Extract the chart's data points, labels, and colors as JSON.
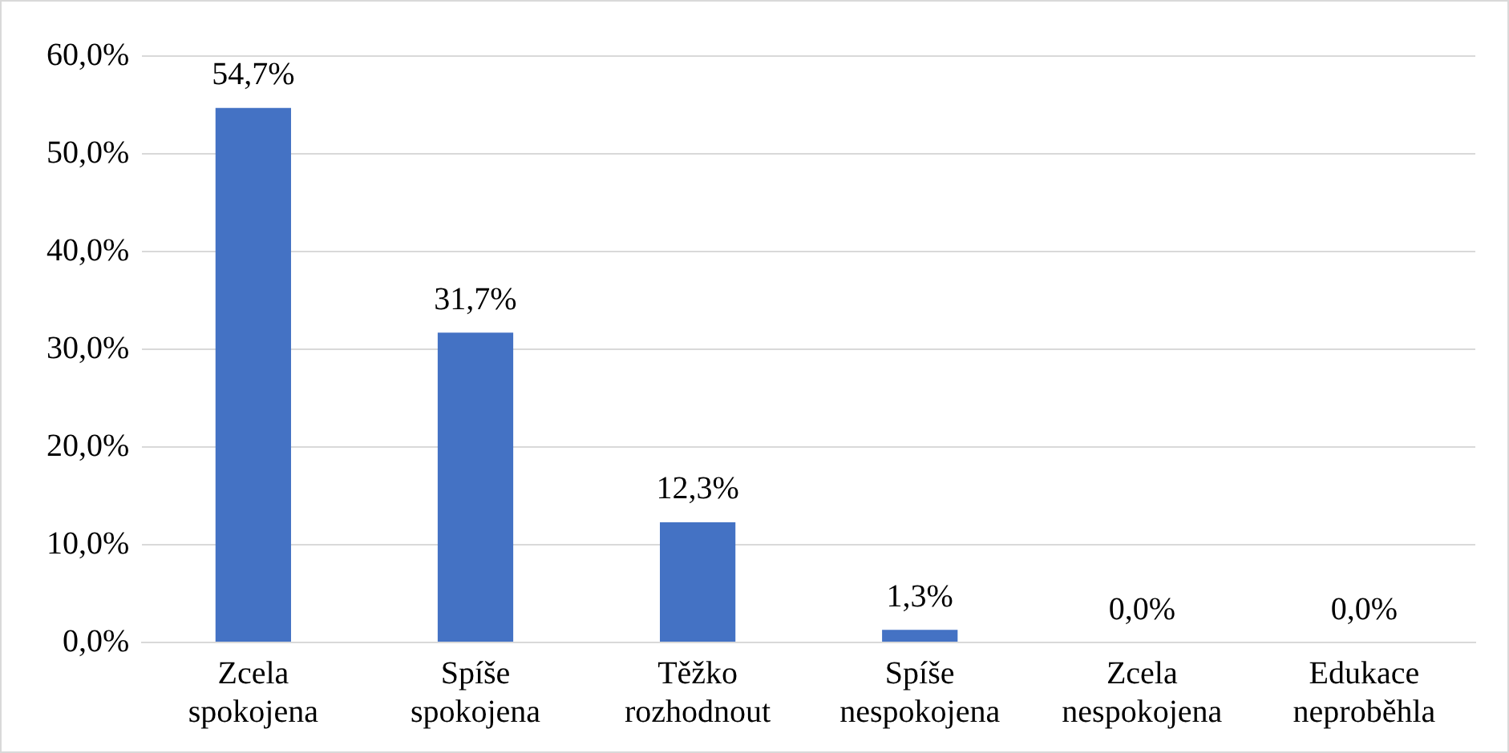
{
  "chart_data": {
    "type": "bar",
    "categories": [
      "Zcela spokojena",
      "Spíše spokojena",
      "Těžko rozhodnout",
      "Spíše nespokojena",
      "Zcela nespokojena",
      "Edukace neproběhla"
    ],
    "values": [
      54.7,
      31.7,
      12.3,
      1.3,
      0,
      0
    ],
    "value_labels": [
      "54,7%",
      "31,7%",
      "12,3%",
      "1,3%",
      "0,0%",
      "0,0%"
    ],
    "color": "#4472c4",
    "ylim": [
      0,
      60
    ],
    "yticks": [
      {
        "value": 0,
        "label": "0,0%"
      },
      {
        "value": 10,
        "label": "10,0%"
      },
      {
        "value": 20,
        "label": "20,0%"
      },
      {
        "value": 30,
        "label": "30,0%"
      },
      {
        "value": 40,
        "label": "40,0%"
      },
      {
        "value": 50,
        "label": "50,0%"
      },
      {
        "value": 60,
        "label": "60,0%"
      }
    ],
    "grid": "y",
    "legend": false
  }
}
